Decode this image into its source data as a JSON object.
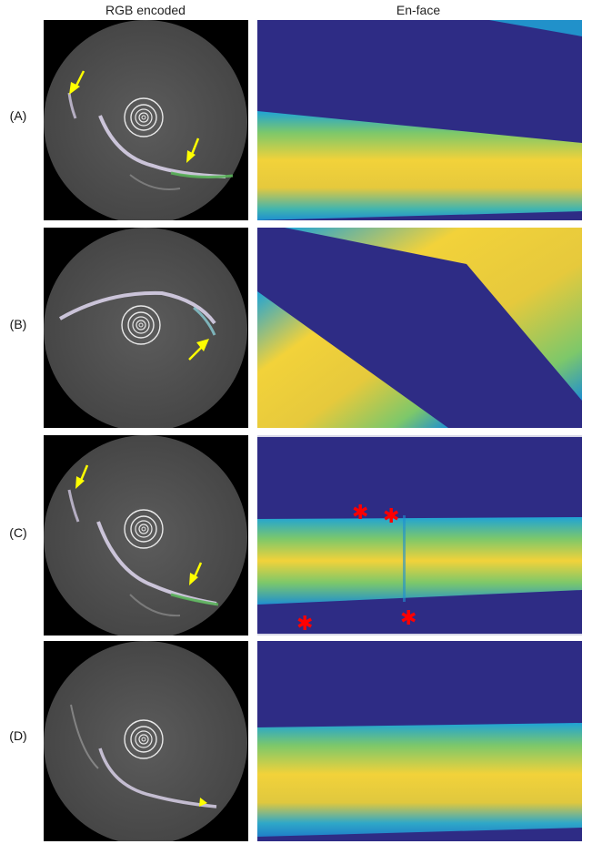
{
  "figure": {
    "column_titles": {
      "left": "RGB encoded",
      "right": "En-face"
    },
    "rows": [
      {
        "label": "(A)"
      },
      {
        "label": "(B)"
      },
      {
        "label": "(C)"
      },
      {
        "label": "(D)"
      }
    ],
    "colors": {
      "background_tissue": "#2e2c85",
      "tissue_yellow": "#f2d23a",
      "tissue_green": "#7dc86a",
      "tissue_cyan": "#1fa3d6",
      "arrow": "#ffff00",
      "asterisk": "#ff0000",
      "oct_field": "#555555"
    },
    "annotations": {
      "arrow_icon": "yellow-arrow-icon",
      "arrowhead_icon": "yellow-arrowhead-icon",
      "asterisk_icon": "red-asterisk-icon",
      "asterisk_glyph": "✱"
    }
  }
}
